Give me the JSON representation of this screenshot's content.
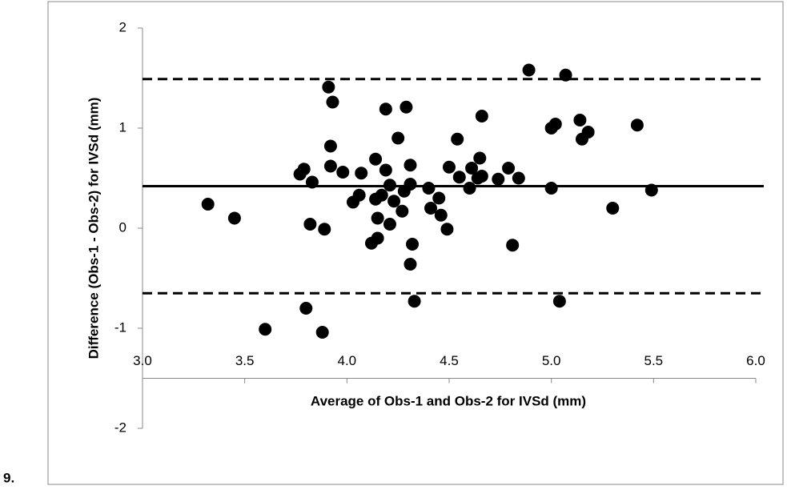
{
  "figure_label": "9.",
  "chart_data": {
    "type": "scatter",
    "xlabel": "Average of Obs-1 and Obs-2 for IVSd (mm)",
    "ylabel": "Difference (Obs-1 - Obs-2) for IVSd (mm)",
    "color": "#000000",
    "x_axis_crosses": -1.5,
    "xlim": [
      3,
      6
    ],
    "ylim": [
      -2,
      2
    ],
    "xticks": [
      {
        "value": 3,
        "label": "3.0"
      },
      {
        "value": 3.5,
        "label": "3.5"
      },
      {
        "value": 4,
        "label": "4.0"
      },
      {
        "value": 4.5,
        "label": "4.5"
      },
      {
        "value": 5,
        "label": "5.0"
      },
      {
        "value": 5.5,
        "label": "5.5"
      },
      {
        "value": 6,
        "label": "6.0"
      }
    ],
    "yticks": [
      2,
      1,
      0,
      -1,
      -2
    ],
    "reference_lines": [
      {
        "value": 1.49,
        "style": "dashed"
      },
      {
        "value": 0.42,
        "style": "solid"
      },
      {
        "value": -0.65,
        "style": "dashed"
      }
    ],
    "x": [
      3.32,
      3.45,
      3.6,
      3.77,
      3.79,
      3.8,
      3.82,
      3.83,
      3.88,
      3.89,
      3.91,
      3.92,
      3.92,
      3.93,
      3.98,
      4.03,
      4.06,
      4.07,
      4.12,
      4.14,
      4.14,
      4.15,
      4.15,
      4.17,
      4.19,
      4.19,
      4.21,
      4.21,
      4.23,
      4.25,
      4.27,
      4.28,
      4.29,
      4.31,
      4.31,
      4.32,
      4.31,
      4.33,
      4.4,
      4.41,
      4.45,
      4.46,
      4.49,
      4.5,
      4.54,
      4.55,
      4.6,
      4.61,
      4.64,
      4.65,
      4.66,
      4.66,
      4.74,
      4.79,
      4.81,
      4.84,
      4.89,
      5.0,
      5.0,
      5.02,
      5.04,
      5.07,
      5.14,
      5.15,
      5.18,
      5.3,
      5.42,
      5.49
    ],
    "values": [
      0.24,
      0.1,
      -1.01,
      0.54,
      0.59,
      -0.8,
      0.04,
      0.46,
      -1.04,
      -0.01,
      1.41,
      0.82,
      0.62,
      1.26,
      0.56,
      0.26,
      0.33,
      0.55,
      -0.15,
      0.69,
      0.29,
      0.1,
      -0.1,
      0.33,
      1.19,
      0.58,
      0.43,
      0.04,
      0.27,
      0.9,
      0.17,
      0.37,
      1.21,
      0.63,
      0.44,
      -0.16,
      -0.36,
      -0.73,
      0.4,
      0.2,
      0.3,
      0.13,
      -0.01,
      0.61,
      0.89,
      0.51,
      0.4,
      0.6,
      0.5,
      0.7,
      1.12,
      0.52,
      0.49,
      0.6,
      -0.17,
      0.5,
      1.58,
      1.0,
      0.4,
      1.04,
      -0.73,
      1.53,
      1.08,
      0.89,
      0.96,
      0.2,
      1.03,
      0.38
    ]
  }
}
